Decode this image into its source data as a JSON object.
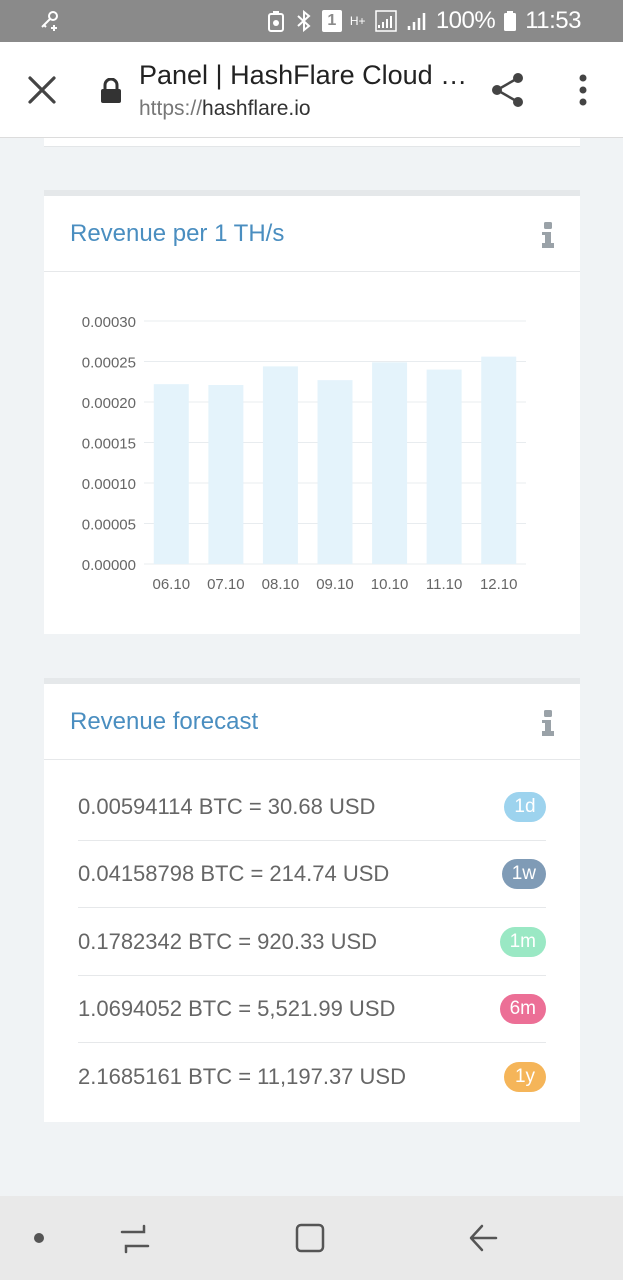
{
  "status_bar": {
    "battery_percent": "100%",
    "time": "11:53",
    "sim_slot": "1",
    "network_type": "H+"
  },
  "browser": {
    "page_title": "Panel | HashFlare Cloud Mining",
    "url_protocol": "https://",
    "url_host": "hashflare.io"
  },
  "revenue_card": {
    "title": "Revenue per 1 TH/s"
  },
  "chart_data": {
    "type": "bar",
    "title": "Revenue per 1 TH/s",
    "categories": [
      "06.10",
      "07.10",
      "08.10",
      "09.10",
      "10.10",
      "11.10",
      "12.10"
    ],
    "values": [
      0.000222,
      0.000221,
      0.000244,
      0.000227,
      0.000249,
      0.00024,
      0.000256
    ],
    "ylim": [
      0,
      0.0003
    ],
    "yticks": [
      "0.00000",
      "0.00005",
      "0.00010",
      "0.00015",
      "0.00020",
      "0.00025",
      "0.00030"
    ],
    "ytick_values": [
      0,
      5e-05,
      0.0001,
      0.00015,
      0.0002,
      0.00025,
      0.0003
    ],
    "grid": true,
    "bar_color": "#e4f3fb",
    "xlabel": "",
    "ylabel": ""
  },
  "forecast_card": {
    "title": "Revenue forecast",
    "rows": [
      {
        "text": "0.00594114 BTC = 30.68 USD",
        "badge": "1d",
        "color": "#9dd3ee"
      },
      {
        "text": "0.04158798 BTC = 214.74 USD",
        "badge": "1w",
        "color": "#7f9bb6"
      },
      {
        "text": "0.1782342 BTC = 920.33 USD",
        "badge": "1m",
        "color": "#9ae8c4"
      },
      {
        "text": "1.0694052 BTC = 5,521.99 USD",
        "badge": "6m",
        "color": "#ec6f96"
      },
      {
        "text": "2.1685161 BTC = 11,197.37 USD",
        "badge": "1y",
        "color": "#f5b559"
      }
    ]
  },
  "colors": {
    "accent": "#4a8ec0",
    "page_bg": "#f0f3f5",
    "status_bar_bg": "#8a8a8a"
  }
}
